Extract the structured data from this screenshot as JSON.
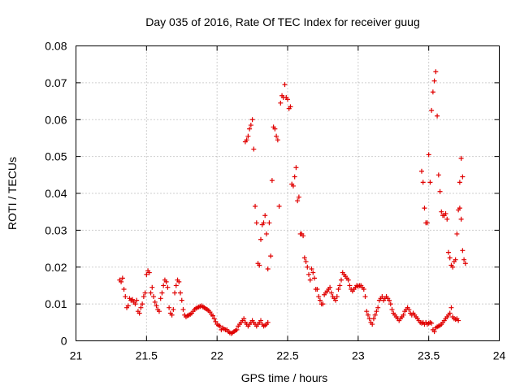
{
  "chart_data": {
    "type": "scatter",
    "title": "Day 035 of 2016, Rate Of TEC Index for receiver guug",
    "xlabel": "GPS time / hours",
    "ylabel": "ROTI / TECUs",
    "xlim": [
      21,
      24
    ],
    "ylim": [
      0,
      0.08
    ],
    "xticks": [
      "21",
      "21.5",
      "22",
      "22.5",
      "23",
      "23.5",
      "24"
    ],
    "yticks": [
      "0",
      "0.01",
      "0.02",
      "0.03",
      "0.04",
      "0.05",
      "0.06",
      "0.07",
      "0.08"
    ],
    "grid": true,
    "marker": "+",
    "color": "#e00000",
    "series": [
      {
        "name": "ROTI",
        "x": [
          21.31,
          21.32,
          21.33,
          21.34,
          21.35,
          21.36,
          21.37,
          21.38,
          21.39,
          21.4,
          21.41,
          21.42,
          21.43,
          21.44,
          21.45,
          21.46,
          21.47,
          21.48,
          21.49,
          21.5,
          21.51,
          21.52,
          21.53,
          21.54,
          21.55,
          21.56,
          21.57,
          21.58,
          21.59,
          21.6,
          21.61,
          21.62,
          21.63,
          21.64,
          21.65,
          21.66,
          21.67,
          21.68,
          21.69,
          21.7,
          21.71,
          21.72,
          21.73,
          21.74,
          21.75,
          21.76,
          21.77,
          21.78,
          21.79,
          21.8,
          21.81,
          21.82,
          21.83,
          21.84,
          21.85,
          21.86,
          21.87,
          21.88,
          21.89,
          21.9,
          21.91,
          21.92,
          21.93,
          21.94,
          21.95,
          21.96,
          21.97,
          21.98,
          21.99,
          22.0,
          22.01,
          22.02,
          22.03,
          22.04,
          22.05,
          22.06,
          22.07,
          22.08,
          22.09,
          22.1,
          22.11,
          22.12,
          22.13,
          22.14,
          22.15,
          22.16,
          22.17,
          22.18,
          22.19,
          22.2,
          22.21,
          22.22,
          22.23,
          22.24,
          22.25,
          22.26,
          22.27,
          22.28,
          22.29,
          22.3,
          22.31,
          22.32,
          22.33,
          22.34,
          22.35,
          22.36,
          22.2,
          22.21,
          22.22,
          22.23,
          22.24,
          22.25,
          22.26,
          22.27,
          22.28,
          22.29,
          22.3,
          22.31,
          22.32,
          22.33,
          22.34,
          22.35,
          22.36,
          22.37,
          22.38,
          22.39,
          22.4,
          22.41,
          22.42,
          22.43,
          22.44,
          22.45,
          22.46,
          22.47,
          22.48,
          22.49,
          22.5,
          22.51,
          22.52,
          22.53,
          22.54,
          22.55,
          22.56,
          22.57,
          22.58,
          22.59,
          22.6,
          22.61,
          22.62,
          22.63,
          22.64,
          22.65,
          22.66,
          22.67,
          22.68,
          22.69,
          22.7,
          22.71,
          22.72,
          22.73,
          22.74,
          22.75,
          22.76,
          22.77,
          22.78,
          22.79,
          22.8,
          22.81,
          22.82,
          22.83,
          22.84,
          22.85,
          22.86,
          22.87,
          22.88,
          22.89,
          22.9,
          22.91,
          22.92,
          22.93,
          22.94,
          22.95,
          22.96,
          22.97,
          22.98,
          22.99,
          23.0,
          23.01,
          23.02,
          23.03,
          23.04,
          23.05,
          23.06,
          23.07,
          23.08,
          23.09,
          23.1,
          23.11,
          23.12,
          23.13,
          23.14,
          23.15,
          23.16,
          23.17,
          23.18,
          23.19,
          23.2,
          23.21,
          23.22,
          23.23,
          23.24,
          23.25,
          23.26,
          23.27,
          23.28,
          23.29,
          23.3,
          23.31,
          23.32,
          23.33,
          23.34,
          23.35,
          23.36,
          23.37,
          23.38,
          23.39,
          23.4,
          23.41,
          23.42,
          23.43,
          23.44,
          23.45,
          23.46,
          23.47,
          23.48,
          23.49,
          23.5,
          23.51,
          23.52,
          23.53,
          23.54,
          23.55,
          23.56,
          23.57,
          23.58,
          23.59,
          23.6,
          23.61,
          23.62,
          23.63,
          23.64,
          23.65,
          23.66,
          23.67,
          23.68,
          23.69,
          23.7,
          23.71,
          23.72,
          23.73,
          23.74,
          23.45,
          23.46,
          23.47,
          23.48,
          23.49,
          23.5,
          23.51,
          23.52,
          23.53,
          23.54,
          23.55,
          23.56,
          23.57,
          23.58,
          23.59,
          23.6,
          23.61,
          23.62,
          23.63,
          23.64,
          23.65,
          23.66,
          23.67,
          23.68,
          23.69,
          23.7,
          23.71,
          23.72,
          23.73,
          23.74,
          23.75,
          23.76
        ],
        "y": [
          0.0165,
          0.016,
          0.017,
          0.014,
          0.012,
          0.009,
          0.0095,
          0.0115,
          0.011,
          0.0112,
          0.0105,
          0.01,
          0.011,
          0.008,
          0.0075,
          0.009,
          0.01,
          0.012,
          0.013,
          0.018,
          0.019,
          0.0185,
          0.013,
          0.0145,
          0.012,
          0.0105,
          0.0095,
          0.0085,
          0.008,
          0.0115,
          0.013,
          0.015,
          0.0165,
          0.016,
          0.0145,
          0.009,
          0.0075,
          0.007,
          0.0085,
          0.013,
          0.015,
          0.0165,
          0.016,
          0.013,
          0.011,
          0.0085,
          0.007,
          0.0065,
          0.0068,
          0.007,
          0.0072,
          0.0075,
          0.008,
          0.0085,
          0.0088,
          0.009,
          0.0092,
          0.0093,
          0.0095,
          0.0092,
          0.009,
          0.0087,
          0.0085,
          0.0082,
          0.0078,
          0.0072,
          0.0068,
          0.006,
          0.0052,
          0.0045,
          0.0042,
          0.004,
          0.003,
          0.0035,
          0.0032,
          0.003,
          0.003,
          0.0025,
          0.0022,
          0.002,
          0.0022,
          0.0025,
          0.0028,
          0.003,
          0.004,
          0.0045,
          0.005,
          0.0055,
          0.006,
          0.005,
          0.0045,
          0.004,
          0.0045,
          0.005,
          0.0055,
          0.005,
          0.0045,
          0.004,
          0.0045,
          0.005,
          0.0055,
          0.0045,
          0.004,
          0.0042,
          0.0045,
          0.005,
          0.054,
          0.0545,
          0.0555,
          0.0575,
          0.0585,
          0.06,
          0.052,
          0.0365,
          0.032,
          0.021,
          0.0205,
          0.0275,
          0.0315,
          0.032,
          0.034,
          0.029,
          0.0195,
          0.032,
          0.023,
          0.0435,
          0.058,
          0.0575,
          0.0555,
          0.0545,
          0.0365,
          0.0645,
          0.0665,
          0.066,
          0.0695,
          0.066,
          0.0655,
          0.063,
          0.0635,
          0.0425,
          0.042,
          0.0445,
          0.047,
          0.038,
          0.039,
          0.029,
          0.029,
          0.0285,
          0.0225,
          0.0215,
          0.02,
          0.018,
          0.0165,
          0.0195,
          0.0185,
          0.017,
          0.014,
          0.014,
          0.012,
          0.011,
          0.01,
          0.01,
          0.0125,
          0.013,
          0.0135,
          0.014,
          0.0145,
          0.013,
          0.012,
          0.0115,
          0.011,
          0.012,
          0.014,
          0.015,
          0.0165,
          0.0185,
          0.018,
          0.0175,
          0.017,
          0.0165,
          0.015,
          0.014,
          0.0135,
          0.014,
          0.0145,
          0.015,
          0.0148,
          0.015,
          0.015,
          0.0145,
          0.014,
          0.012,
          0.008,
          0.007,
          0.006,
          0.005,
          0.0045,
          0.006,
          0.007,
          0.008,
          0.009,
          0.011,
          0.0115,
          0.012,
          0.011,
          0.0115,
          0.012,
          0.0115,
          0.011,
          0.01,
          0.0085,
          0.0075,
          0.007,
          0.0065,
          0.006,
          0.0055,
          0.006,
          0.0065,
          0.007,
          0.008,
          0.0085,
          0.009,
          0.0085,
          0.0075,
          0.007,
          0.0075,
          0.007,
          0.0065,
          0.006,
          0.0055,
          0.005,
          0.0048,
          0.005,
          0.0045,
          0.005,
          0.0045,
          0.0048,
          0.005,
          0.0048,
          0.003,
          0.0025,
          0.0035,
          0.0038,
          0.004,
          0.0042,
          0.0045,
          0.005,
          0.0055,
          0.006,
          0.0065,
          0.007,
          0.0075,
          0.009,
          0.0065,
          0.006,
          0.0058,
          0.006,
          0.0055,
          0.043,
          0.0495,
          0.0445,
          0.046,
          0.043,
          0.036,
          0.032,
          0.032,
          0.0505,
          0.043,
          0.0625,
          0.0675,
          0.0705,
          0.073,
          0.061,
          0.045,
          0.0405,
          0.035,
          0.034,
          0.034,
          0.0345,
          0.033,
          0.024,
          0.0225,
          0.0205,
          0.02,
          0.0215,
          0.022,
          0.029,
          0.0355,
          0.036,
          0.033,
          0.0245,
          0.022,
          0.021
        ]
      }
    ]
  }
}
